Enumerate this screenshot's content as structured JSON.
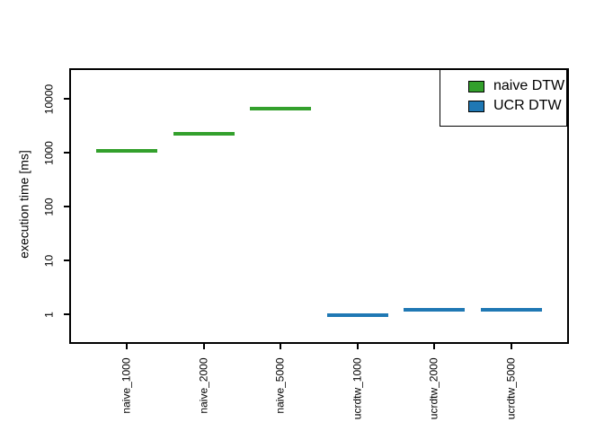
{
  "figure": {
    "background": "#FFFFFF",
    "axis_color": "#000000"
  },
  "chart_data": {
    "type": "scatter",
    "subtype": "boxplot-median-lines",
    "marker": "horizontal-line-segment",
    "title": "",
    "xlabel": "",
    "ylabel": "execution time [ms]",
    "yscale": "log10",
    "ylim": [
      0.3,
      35000
    ],
    "yticks": [
      "1",
      "10",
      "100",
      "1000",
      "10000"
    ],
    "grid": false,
    "legend_position": "top-right",
    "categories": [
      "naive_1000",
      "naive_2000",
      "naive_5000",
      "ucrdtw_1000",
      "ucrdtw_2000",
      "ucrdtw_5000"
    ],
    "series": [
      {
        "name": "naive DTW",
        "color": "#33A02C",
        "values": [
          1100,
          2250,
          6500,
          null,
          null,
          null
        ]
      },
      {
        "name": "UCR DTW",
        "color": "#1F78B4",
        "values": [
          null,
          null,
          null,
          0.97,
          1.2,
          1.2
        ]
      }
    ]
  }
}
